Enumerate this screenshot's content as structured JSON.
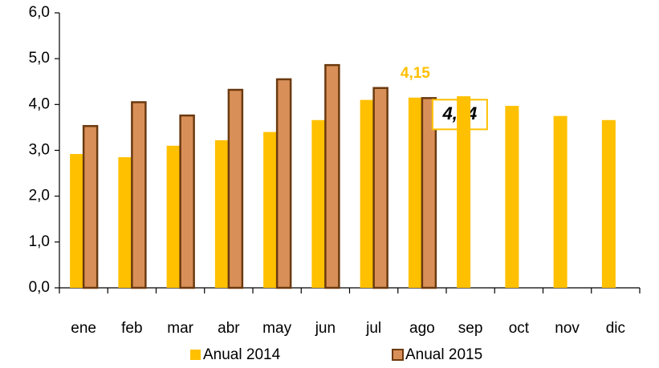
{
  "chart_data": {
    "type": "bar",
    "categories": [
      "ene",
      "feb",
      "mar",
      "abr",
      "may",
      "jun",
      "jul",
      "ago",
      "sep",
      "oct",
      "nov",
      "dic"
    ],
    "series": [
      {
        "name": "Anual 2014",
        "color": "#FFC000",
        "values": [
          2.92,
          2.85,
          3.1,
          3.22,
          3.4,
          3.66,
          4.1,
          4.15,
          4.18,
          3.97,
          3.75,
          3.66
        ],
        "value_labels": [
          null,
          null,
          null,
          null,
          null,
          null,
          null,
          "4,15",
          null,
          null,
          null,
          null
        ]
      },
      {
        "name": "Anual 2015",
        "color": "#D99058",
        "values": [
          3.53,
          4.05,
          3.76,
          4.32,
          4.55,
          4.86,
          4.36,
          4.14,
          null,
          null,
          null,
          null
        ],
        "value_labels": [
          null,
          null,
          null,
          null,
          null,
          null,
          null,
          "4,14",
          null,
          null,
          null,
          null
        ]
      }
    ],
    "ylim": [
      0,
      6
    ],
    "yticks": [
      {
        "value": 0,
        "label": "0,0"
      },
      {
        "value": 1,
        "label": "1,0"
      },
      {
        "value": 2,
        "label": "2,0"
      },
      {
        "value": 3,
        "label": "3,0"
      },
      {
        "value": 4,
        "label": "4,0"
      },
      {
        "value": 5,
        "label": "5,0"
      },
      {
        "value": 6,
        "label": "6,0"
      }
    ],
    "grid": false
  }
}
